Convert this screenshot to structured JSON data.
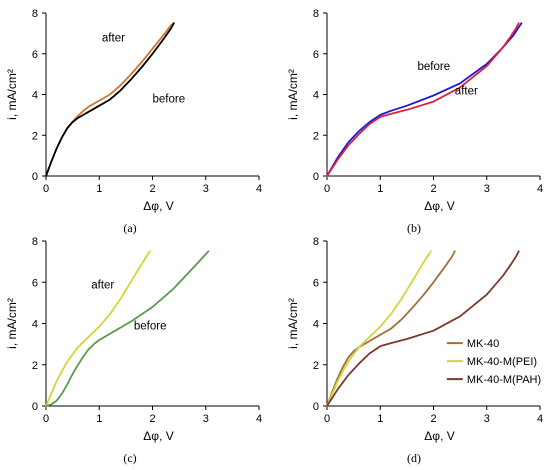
{
  "chart_data": [
    {
      "type": "line",
      "panel": "(a)",
      "xlabel": "Δφ, V",
      "ylabel": "i, mA/cm²",
      "xlim": [
        0,
        4
      ],
      "ylim": [
        0,
        8
      ],
      "xticks": [
        "0",
        "1",
        "2",
        "3",
        "4"
      ],
      "yticks": [
        "0",
        "2",
        "4",
        "6",
        "8"
      ],
      "grid": false,
      "annotations": [
        {
          "text": "after",
          "x": 1.05,
          "y": 6.6
        },
        {
          "text": "before",
          "x": 2.0,
          "y": 3.6
        }
      ],
      "series": [
        {
          "color": "#d0742c",
          "x": [
            0,
            0.1,
            0.2,
            0.3,
            0.4,
            0.5,
            0.6,
            0.7,
            0.8,
            0.9,
            1.0,
            1.2,
            1.4,
            1.6,
            1.8,
            2.0,
            2.2,
            2.35,
            2.4
          ],
          "y": [
            0,
            0.7,
            1.35,
            1.9,
            2.35,
            2.65,
            2.95,
            3.2,
            3.4,
            3.55,
            3.7,
            4.0,
            4.45,
            5.0,
            5.6,
            6.25,
            6.9,
            7.4,
            7.5
          ]
        },
        {
          "color": "#000000",
          "x": [
            0,
            0.1,
            0.2,
            0.3,
            0.4,
            0.5,
            0.6,
            0.7,
            0.8,
            0.9,
            1.0,
            1.2,
            1.4,
            1.6,
            1.8,
            2.0,
            2.2,
            2.35,
            2.4
          ],
          "y": [
            0,
            0.7,
            1.35,
            1.9,
            2.35,
            2.65,
            2.85,
            3.0,
            3.15,
            3.3,
            3.45,
            3.75,
            4.2,
            4.75,
            5.35,
            6.0,
            6.7,
            7.25,
            7.5
          ]
        }
      ]
    },
    {
      "type": "line",
      "panel": "(b)",
      "xlabel": "Δφ, V",
      "ylabel": "i, mA/cm²",
      "xlim": [
        0,
        4
      ],
      "ylim": [
        0,
        8
      ],
      "xticks": [
        "0",
        "1",
        "2",
        "3",
        "4"
      ],
      "yticks": [
        "0",
        "2",
        "4",
        "6",
        "8"
      ],
      "grid": false,
      "annotations": [
        {
          "text": "before",
          "x": 1.7,
          "y": 5.2
        },
        {
          "text": "after",
          "x": 2.4,
          "y": 4.0
        }
      ],
      "series": [
        {
          "color": "#1a1ad6",
          "x": [
            0,
            0.2,
            0.4,
            0.6,
            0.8,
            1.0,
            1.2,
            1.5,
            2.0,
            2.5,
            3.0,
            3.3,
            3.5,
            3.6,
            3.65
          ],
          "y": [
            0,
            0.9,
            1.65,
            2.2,
            2.65,
            3.0,
            3.2,
            3.45,
            3.95,
            4.55,
            5.5,
            6.3,
            6.9,
            7.3,
            7.5
          ]
        },
        {
          "color": "#e0203c",
          "x": [
            0,
            0.2,
            0.4,
            0.6,
            0.8,
            1.0,
            1.2,
            1.5,
            2.0,
            2.5,
            3.0,
            3.3,
            3.45,
            3.55,
            3.6
          ],
          "y": [
            0,
            0.8,
            1.5,
            2.05,
            2.55,
            2.9,
            3.05,
            3.25,
            3.65,
            4.35,
            5.4,
            6.3,
            6.85,
            7.25,
            7.5
          ]
        }
      ]
    },
    {
      "type": "line",
      "panel": "(c)",
      "xlabel": "Δφ, V",
      "ylabel": "i, mA/cm²",
      "xlim": [
        0,
        4
      ],
      "ylim": [
        0,
        8
      ],
      "xticks": [
        "0",
        "1",
        "2",
        "3",
        "4"
      ],
      "yticks": [
        "0",
        "2",
        "4",
        "6",
        "8"
      ],
      "grid": false,
      "annotations": [
        {
          "text": "after",
          "x": 0.85,
          "y": 5.7
        },
        {
          "text": "before",
          "x": 1.65,
          "y": 3.7
        }
      ],
      "series": [
        {
          "color": "#d4d43a",
          "x": [
            0,
            0.1,
            0.2,
            0.3,
            0.4,
            0.5,
            0.6,
            0.7,
            0.8,
            1.0,
            1.2,
            1.4,
            1.6,
            1.8,
            1.95
          ],
          "y": [
            0,
            0.6,
            1.2,
            1.7,
            2.15,
            2.5,
            2.85,
            3.1,
            3.35,
            3.85,
            4.45,
            5.2,
            6.05,
            6.9,
            7.5
          ]
        },
        {
          "color": "#5a9a4a",
          "x": [
            0,
            0.1,
            0.2,
            0.3,
            0.4,
            0.5,
            0.6,
            0.7,
            0.8,
            0.9,
            1.0,
            1.3,
            1.6,
            2.0,
            2.4,
            2.8,
            3.05
          ],
          "y": [
            0,
            0.08,
            0.25,
            0.6,
            1.05,
            1.55,
            2.0,
            2.4,
            2.75,
            3.0,
            3.2,
            3.65,
            4.1,
            4.8,
            5.7,
            6.8,
            7.5
          ]
        }
      ]
    },
    {
      "type": "line",
      "panel": "(d)",
      "xlabel": "Δφ, V",
      "ylabel": "i, mA/cm²",
      "xlim": [
        0,
        4
      ],
      "ylim": [
        0,
        8
      ],
      "xticks": [
        "0",
        "1",
        "2",
        "3",
        "4"
      ],
      "yticks": [
        "0",
        "2",
        "4",
        "6",
        "8"
      ],
      "grid": false,
      "legend": "right",
      "series": [
        {
          "name": "MK-40",
          "color": "#a0703a",
          "x": [
            0,
            0.1,
            0.2,
            0.3,
            0.4,
            0.5,
            0.6,
            0.7,
            0.8,
            0.9,
            1.0,
            1.2,
            1.4,
            1.6,
            1.8,
            2.0,
            2.2,
            2.35,
            2.4
          ],
          "y": [
            0,
            0.7,
            1.35,
            1.9,
            2.35,
            2.65,
            2.85,
            3.0,
            3.15,
            3.3,
            3.45,
            3.75,
            4.2,
            4.75,
            5.35,
            6.0,
            6.7,
            7.25,
            7.5
          ]
        },
        {
          "name": "MK-40-M(PEI)",
          "color": "#d4d43a",
          "x": [
            0,
            0.1,
            0.2,
            0.3,
            0.4,
            0.5,
            0.6,
            0.7,
            0.8,
            1.0,
            1.2,
            1.4,
            1.6,
            1.8,
            1.95
          ],
          "y": [
            0,
            0.6,
            1.2,
            1.7,
            2.15,
            2.5,
            2.85,
            3.1,
            3.35,
            3.85,
            4.45,
            5.2,
            6.05,
            6.9,
            7.5
          ]
        },
        {
          "name": "MK-40-M(PAH)",
          "color": "#7a3a2a",
          "x": [
            0,
            0.2,
            0.4,
            0.6,
            0.8,
            1.0,
            1.2,
            1.5,
            2.0,
            2.5,
            3.0,
            3.3,
            3.45,
            3.55,
            3.6
          ],
          "y": [
            0,
            0.8,
            1.5,
            2.05,
            2.55,
            2.9,
            3.05,
            3.25,
            3.65,
            4.35,
            5.4,
            6.3,
            6.85,
            7.25,
            7.5
          ]
        }
      ]
    }
  ]
}
